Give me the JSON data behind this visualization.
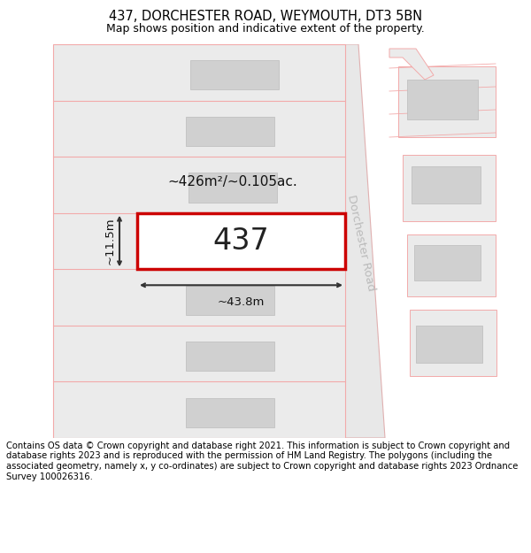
{
  "title_line1": "437, DORCHESTER ROAD, WEYMOUTH, DT3 5BN",
  "title_line2": "Map shows position and indicative extent of the property.",
  "footer_text": "Contains OS data © Crown copyright and database right 2021. This information is subject to Crown copyright and database rights 2023 and is reproduced with the permission of HM Land Registry. The polygons (including the associated geometry, namely x, y co-ordinates) are subject to Crown copyright and database rights 2023 Ordnance Survey 100026316.",
  "road_label": "Dorchester Road",
  "plot_number": "437",
  "area_label": "~426m²/~0.105ac.",
  "width_label": "~43.8m",
  "height_label": "~11.5m",
  "bg_color": "#ffffff",
  "plot_fill": "#ffffff",
  "plot_edge": "#cc0000",
  "parcel_fill": "#ebebeb",
  "parcel_edge": "#f2aaaa",
  "building_fill": "#d0d0d0",
  "building_edge": "#bbbbbb",
  "road_fill": "#e8e8e8",
  "road_edge": "#e0b0b0",
  "dim_color": "#333333",
  "road_text_color": "#bbbbbb",
  "title_fontsize": 10.5,
  "subtitle_fontsize": 9,
  "footer_fontsize": 7.2,
  "plot_label_fontsize": 24,
  "area_fontsize": 11,
  "dim_fontsize": 9.5
}
